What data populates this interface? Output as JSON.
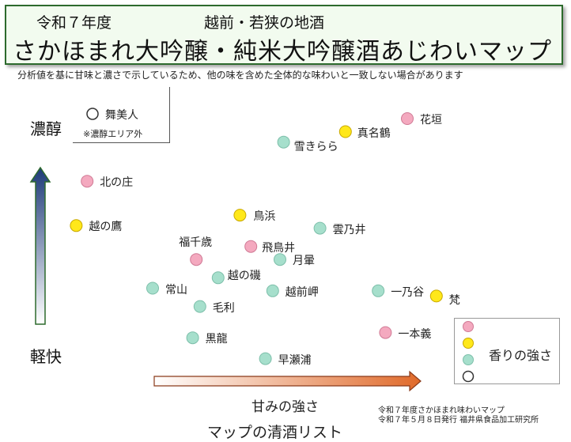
{
  "header": {
    "line1_left": "令和７年度",
    "line1_right": "越前・若狭の地酒",
    "title": "さかほまれ大吟醸・純米大吟醸酒あじわいマップ"
  },
  "note": "分析値を基に甘味と濃さで示しているため、他の味を含めた全体的な味わいと一致しない場合があります",
  "outside": {
    "name": "舞美人",
    "note": "※濃醇エリア外"
  },
  "footer": {
    "line1": "令和７年度さかほまれ味わいマップ",
    "line2": "令和７年５月８日発行 福井県食品加工研究所",
    "list_title": "マップの清酒リスト"
  },
  "legend": {
    "label": "香りの強さ"
  },
  "colors": {
    "pink": "#f4a9bf",
    "yellow": "#ffe81a",
    "green": "#a6dfcc",
    "white": "#ffffff"
  },
  "chart_data": {
    "type": "scatter",
    "xlabel": "甘みの強さ",
    "ylabel_top": "濃醇",
    "ylabel_bottom": "軽快",
    "aroma_levels": [
      "pink",
      "yellow",
      "green",
      "white"
    ],
    "points": [
      {
        "name": "花垣",
        "x": 8.5,
        "y": 8.0,
        "aroma": "pink"
      },
      {
        "name": "真名鶴",
        "x": 6.8,
        "y": 7.5,
        "aroma": "yellow"
      },
      {
        "name": "雪きらら",
        "x": 5.1,
        "y": 7.1,
        "aroma": "green"
      },
      {
        "name": "北の庄",
        "x": -0.3,
        "y": 5.6,
        "aroma": "pink"
      },
      {
        "name": "鳥浜",
        "x": 3.9,
        "y": 4.3,
        "aroma": "yellow"
      },
      {
        "name": "越の鷹",
        "x": -0.6,
        "y": 3.9,
        "aroma": "yellow"
      },
      {
        "name": "雲乃井",
        "x": 6.1,
        "y": 3.8,
        "aroma": "green"
      },
      {
        "name": "福千歳",
        "x": 2.7,
        "y": 2.6,
        "aroma": "pink"
      },
      {
        "name": "飛鳥井",
        "x": 4.2,
        "y": 3.1,
        "aroma": "pink"
      },
      {
        "name": "月暈",
        "x": 5.0,
        "y": 2.6,
        "aroma": "green"
      },
      {
        "name": "越の磯",
        "x": 3.3,
        "y": 1.9,
        "aroma": "green"
      },
      {
        "name": "常山",
        "x": 1.5,
        "y": 1.5,
        "aroma": "green"
      },
      {
        "name": "越前岬",
        "x": 4.8,
        "y": 1.4,
        "aroma": "green"
      },
      {
        "name": "一乃谷",
        "x": 7.7,
        "y": 1.4,
        "aroma": "green"
      },
      {
        "name": "梵",
        "x": 9.3,
        "y": 1.2,
        "aroma": "yellow"
      },
      {
        "name": "毛利",
        "x": 2.8,
        "y": 0.8,
        "aroma": "green"
      },
      {
        "name": "一本義",
        "x": 7.9,
        "y": -0.2,
        "aroma": "pink"
      },
      {
        "name": "黒龍",
        "x": 2.6,
        "y": -0.4,
        "aroma": "green"
      },
      {
        "name": "早瀬浦",
        "x": 4.6,
        "y": -1.2,
        "aroma": "green"
      }
    ]
  }
}
